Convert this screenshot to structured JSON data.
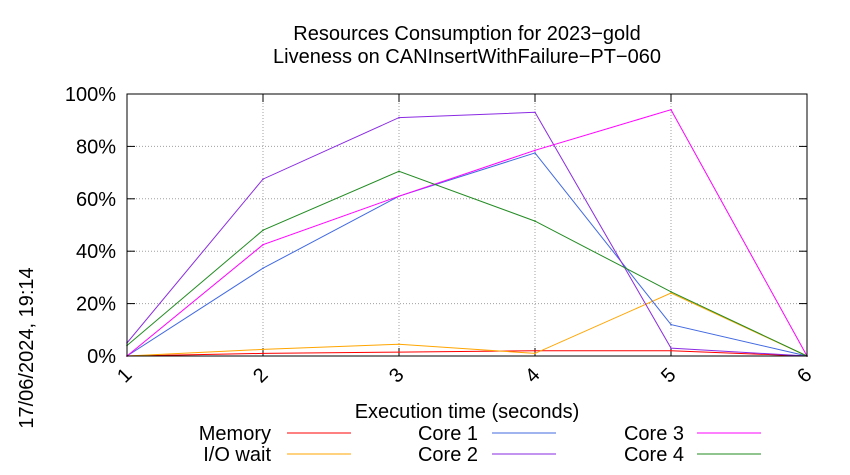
{
  "side_text": "17/06/2024, 19:14",
  "chart_data": {
    "type": "line",
    "title": [
      "Resources Consumption for 2023−gold",
      "Liveness on CANInsertWithFailure−PT−060"
    ],
    "xlabel": "Execution time (seconds)",
    "ylabel": "",
    "x": [
      1,
      2,
      3,
      4,
      5,
      6
    ],
    "xlim": [
      1,
      6
    ],
    "ylim": [
      0,
      100
    ],
    "x_tick_labels": [
      "1",
      "2",
      "3",
      "4",
      "5",
      "6"
    ],
    "y_tick_labels": [
      "0%",
      "20%",
      "40%",
      "60%",
      "80%",
      "100%"
    ],
    "y_ticks": [
      0,
      20,
      40,
      60,
      80,
      100
    ],
    "grid": true,
    "legend_placement": "bottom",
    "series": [
      {
        "name": "Memory",
        "color": "#ff0000",
        "values": [
          0,
          1,
          1.5,
          2,
          2,
          0
        ]
      },
      {
        "name": "I/O wait",
        "color": "#ffa500",
        "values": [
          0,
          2.5,
          4.5,
          1,
          24,
          0
        ]
      },
      {
        "name": "Core 1",
        "color": "#4169e1",
        "values": [
          0,
          33.5,
          61,
          77.5,
          12,
          0
        ]
      },
      {
        "name": "Core 2",
        "color": "#8a2be2",
        "values": [
          5,
          67.5,
          91,
          93,
          3,
          0
        ]
      },
      {
        "name": "Core 3",
        "color": "#ff00ff",
        "values": [
          0,
          42.5,
          61,
          78.5,
          94,
          0
        ]
      },
      {
        "name": "Core 4",
        "color": "#228b22",
        "values": [
          4,
          48,
          70.5,
          51.5,
          24.5,
          0
        ]
      }
    ]
  }
}
